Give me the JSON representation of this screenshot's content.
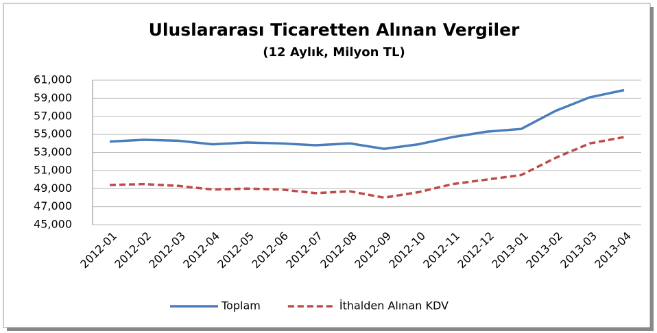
{
  "chart_data": {
    "type": "line",
    "title": "Uluslararası Ticaretten Alınan Vergiler",
    "subtitle": "(12 Aylık, Milyon TL)",
    "categories": [
      "2012-01",
      "2012-02",
      "2012-03",
      "2012-04",
      "2012-05",
      "2012-06",
      "2012-07",
      "2012-08",
      "2012-09",
      "2012-10",
      "2012-11",
      "2012-12",
      "2013-01",
      "2013-02",
      "2013-03",
      "2013-04"
    ],
    "series": [
      {
        "name": "Toplam",
        "color": "#4a7ebb",
        "dash": false,
        "values": [
          54200,
          54400,
          54300,
          53900,
          54100,
          54000,
          53800,
          54000,
          53400,
          53900,
          54700,
          55300,
          55600,
          57600,
          59100,
          59900
        ]
      },
      {
        "name": "İthalden Alınan KDV",
        "color": "#be4b48",
        "dash": true,
        "values": [
          49400,
          49500,
          49300,
          48900,
          49000,
          48900,
          48500,
          48700,
          48000,
          48600,
          49500,
          50000,
          50500,
          52400,
          54000,
          54700
        ]
      }
    ],
    "ylim": [
      45000,
      61000
    ],
    "yticks": [
      {
        "value": 45000,
        "label": "45,000"
      },
      {
        "value": 47000,
        "label": "47,000"
      },
      {
        "value": 49000,
        "label": "49,000"
      },
      {
        "value": 51000,
        "label": "51,000"
      },
      {
        "value": 53000,
        "label": "53,000"
      },
      {
        "value": 55000,
        "label": "55,000"
      },
      {
        "value": 57000,
        "label": "57,000"
      },
      {
        "value": 59000,
        "label": "59,000"
      },
      {
        "value": 61000,
        "label": "61,000"
      }
    ],
    "grid": true,
    "legend": "bottom"
  }
}
